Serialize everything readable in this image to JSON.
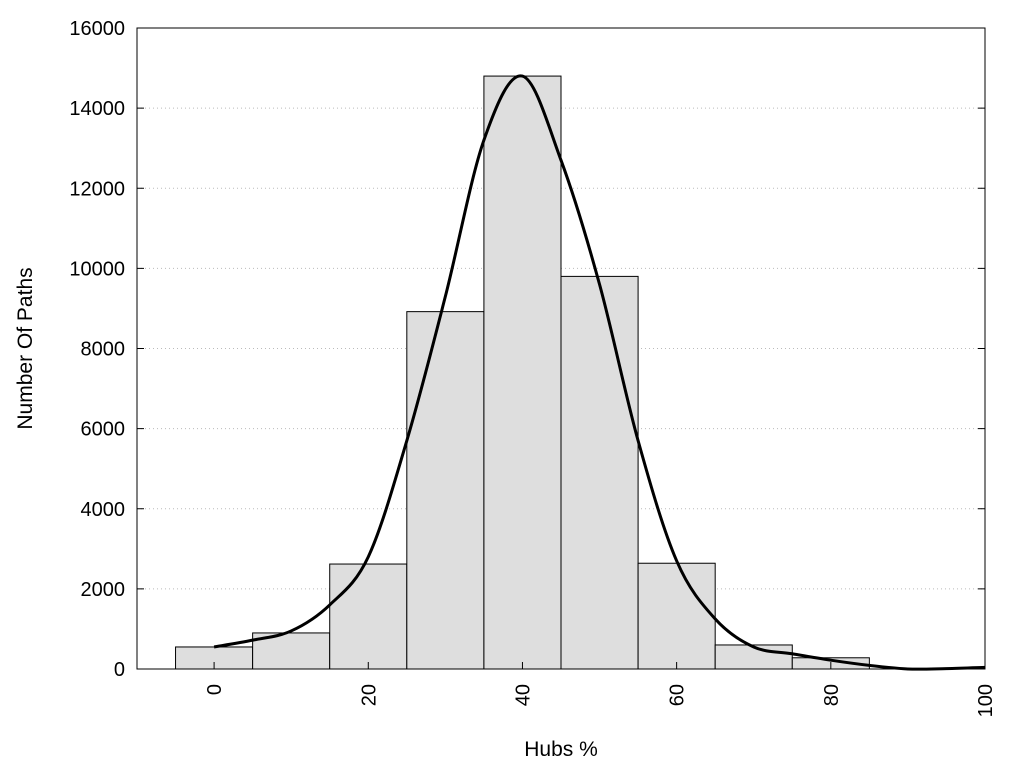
{
  "chart_data": {
    "type": "bar",
    "title": "",
    "xlabel": "Hubs %",
    "ylabel": "Number Of Paths",
    "xlim": [
      -10,
      100
    ],
    "ylim": [
      0,
      16000
    ],
    "xticks": [
      0,
      20,
      40,
      60,
      80,
      100
    ],
    "yticks": [
      0,
      2000,
      4000,
      6000,
      8000,
      10000,
      12000,
      14000,
      16000
    ],
    "grid": "horizontal-dotted",
    "bin_width": 10,
    "colors": {
      "bar_fill": "#dedede",
      "bar_stroke": "#000000",
      "curve": "#000000",
      "grid": "#bbbbbb"
    },
    "bins": [
      {
        "center": 0,
        "value": 550
      },
      {
        "center": 10,
        "value": 900
      },
      {
        "center": 20,
        "value": 2620
      },
      {
        "center": 30,
        "value": 8920
      },
      {
        "center": 40,
        "value": 14800
      },
      {
        "center": 50,
        "value": 9800
      },
      {
        "center": 60,
        "value": 2640
      },
      {
        "center": 70,
        "value": 600
      },
      {
        "center": 80,
        "value": 280
      },
      {
        "center": 90,
        "value": 0
      }
    ],
    "curve": {
      "type": "line",
      "x": [
        0,
        5,
        10,
        15,
        20,
        25,
        30,
        35,
        40,
        45,
        50,
        55,
        60,
        65,
        70,
        75,
        80,
        85,
        90,
        95,
        100
      ],
      "y": [
        550,
        720,
        950,
        1600,
        2800,
        5700,
        9300,
        13200,
        14800,
        12700,
        9600,
        5700,
        2700,
        1250,
        550,
        380,
        220,
        90,
        0,
        10,
        40
      ]
    }
  }
}
